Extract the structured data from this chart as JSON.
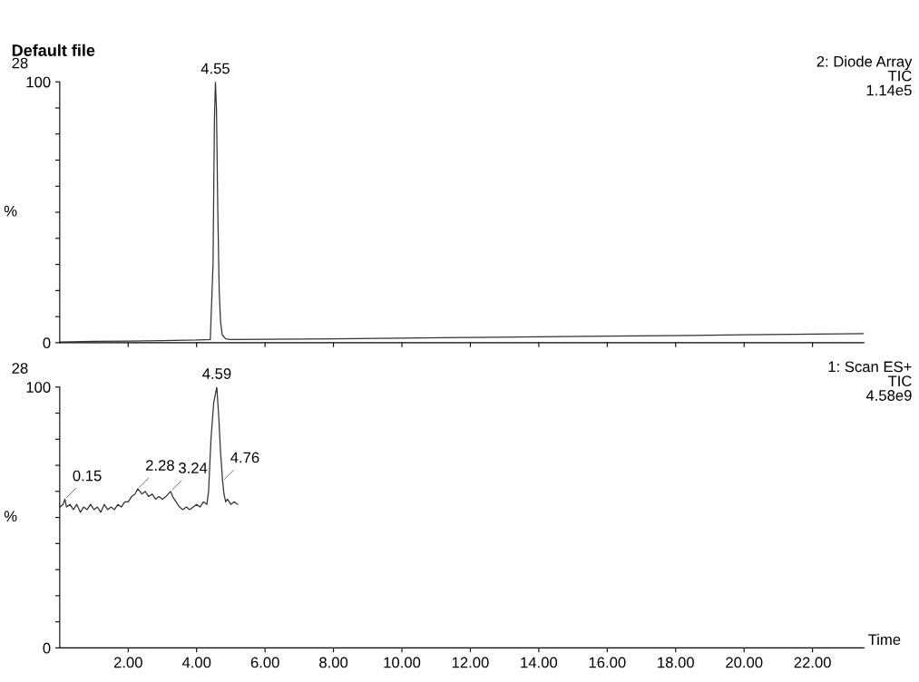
{
  "chart_data": [
    {
      "type": "line",
      "title": "Default file",
      "ylabel": "%",
      "xlim": [
        0,
        23.5
      ],
      "ylim": [
        0,
        100
      ],
      "xticks": [
        {
          "value": 2,
          "label": null
        },
        {
          "value": 4,
          "label": null
        },
        {
          "value": 6,
          "label": null
        },
        {
          "value": 8,
          "label": null
        },
        {
          "value": 10,
          "label": null
        },
        {
          "value": 12,
          "label": null
        },
        {
          "value": 14,
          "label": null
        },
        {
          "value": 16,
          "label": null
        },
        {
          "value": 18,
          "label": null
        },
        {
          "value": 20,
          "label": null
        },
        {
          "value": 22,
          "label": null
        }
      ],
      "yticks": [
        0,
        {
          "value": 10,
          "label": null
        },
        {
          "value": 20,
          "label": null
        },
        {
          "value": 30,
          "label": null
        },
        {
          "value": 40,
          "label": null
        },
        {
          "value": 50,
          "label": null
        },
        {
          "value": 60,
          "label": null
        },
        {
          "value": 70,
          "label": null
        },
        {
          "value": 80,
          "label": null
        },
        {
          "value": 90,
          "label": null
        },
        100
      ],
      "tick_labels": "y",
      "grid": false,
      "legend": false,
      "annotations": [
        "28",
        "2: Diode Array",
        "TIC",
        "1.14e5",
        {
          "text": "4.55",
          "x": 4.55,
          "y": 100
        }
      ],
      "series": [
        {
          "color": "#333333",
          "x": [
            0,
            1,
            2,
            3,
            4,
            4.4,
            4.48,
            4.52,
            4.55,
            4.58,
            4.62,
            4.66,
            4.7,
            4.75,
            4.85,
            5,
            8,
            12,
            16,
            20,
            23.5
          ],
          "values": [
            0.3,
            0.5,
            0.6,
            0.8,
            1,
            1.2,
            30,
            85,
            100,
            90,
            50,
            20,
            8,
            3,
            1.5,
            1.2,
            1.5,
            2,
            2.5,
            3,
            3.5
          ]
        }
      ]
    },
    {
      "type": "line",
      "xlabel": "Time",
      "ylabel": "%",
      "xlim": [
        0,
        23.5
      ],
      "ylim": [
        0,
        100
      ],
      "xticks": [
        {
          "value": 2,
          "label": "2.00"
        },
        {
          "value": 4,
          "label": "4.00"
        },
        {
          "value": 6,
          "label": "6.00"
        },
        {
          "value": 8,
          "label": "8.00"
        },
        {
          "value": 10,
          "label": "10.00"
        },
        {
          "value": 12,
          "label": "12.00"
        },
        {
          "value": 14,
          "label": "14.00"
        },
        {
          "value": 16,
          "label": "16.00"
        },
        {
          "value": 18,
          "label": "18.00"
        },
        {
          "value": 20,
          "label": "20.00"
        },
        {
          "value": 22,
          "label": "22.00"
        }
      ],
      "yticks": [
        0,
        {
          "value": 10,
          "label": null
        },
        {
          "value": 20,
          "label": null
        },
        {
          "value": 30,
          "label": null
        },
        {
          "value": 40,
          "label": null
        },
        {
          "value": 50,
          "label": null
        },
        {
          "value": 60,
          "label": null
        },
        {
          "value": 70,
          "label": null
        },
        {
          "value": 80,
          "label": null
        },
        {
          "value": 90,
          "label": null
        },
        100
      ],
      "grid": false,
      "legend": false,
      "annotations": [
        "28",
        "1: Scan ES+",
        "TIC",
        "4.58e9",
        {
          "text": "0.15",
          "x": 0.15,
          "y": 57
        },
        {
          "text": "2.28",
          "x": 2.28,
          "y": 61
        },
        {
          "text": "3.24",
          "x": 3.24,
          "y": 60
        },
        {
          "text": "4.59",
          "x": 4.59,
          "y": 100
        },
        {
          "text": "4.76",
          "x": 4.76,
          "y": 64
        }
      ],
      "series": [
        {
          "color": "#333333",
          "x": [
            0,
            0.1,
            0.15,
            0.2,
            0.3,
            0.4,
            0.5,
            0.6,
            0.7,
            0.8,
            0.9,
            1.0,
            1.1,
            1.2,
            1.3,
            1.4,
            1.5,
            1.6,
            1.7,
            1.8,
            1.9,
            2.0,
            2.1,
            2.2,
            2.28,
            2.4,
            2.5,
            2.6,
            2.7,
            2.8,
            2.9,
            3.0,
            3.1,
            3.24,
            3.3,
            3.4,
            3.5,
            3.6,
            3.7,
            3.8,
            3.9,
            4.0,
            4.1,
            4.2,
            4.3,
            4.35,
            4.42,
            4.5,
            4.59,
            4.65,
            4.7,
            4.76,
            4.8,
            4.85,
            4.9,
            5.0,
            5.1,
            5.2
          ],
          "values": [
            54,
            55,
            57,
            54,
            55,
            53,
            55,
            52,
            54,
            53,
            55,
            53,
            54,
            52,
            55,
            53,
            54,
            53,
            55,
            54,
            56,
            56,
            58,
            59,
            61,
            59,
            60,
            58,
            59,
            57,
            58,
            57,
            58,
            60,
            58,
            56,
            54,
            53,
            54,
            53,
            54,
            55,
            54,
            56,
            55,
            60,
            80,
            94,
            100,
            88,
            75,
            64,
            59,
            56,
            57,
            55,
            56,
            55
          ]
        }
      ]
    }
  ]
}
